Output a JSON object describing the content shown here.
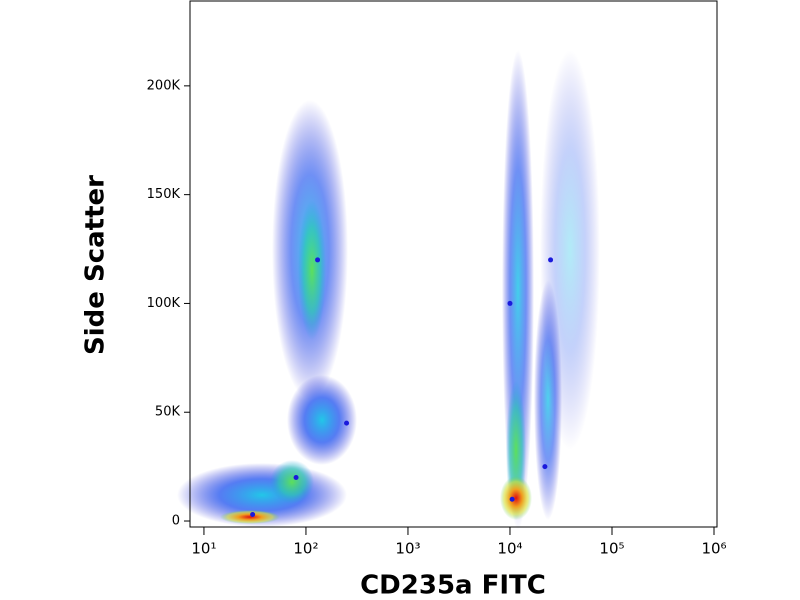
{
  "chart_data": {
    "type": "scatter",
    "x_label": "CD235a FITC",
    "y_label": "Side Scatter",
    "x": [
      130,
      80,
      30,
      250,
      10500,
      10000,
      22000,
      25000
    ],
    "y": [
      120000,
      20000,
      3000,
      45000,
      10000,
      100000,
      25000,
      120000
    ],
    "color": "#1a1adc",
    "xscale": "log",
    "xlim": [
      7.3,
      1070000
    ],
    "ylim": [
      -2750,
      239000
    ],
    "xticks": [
      {
        "value": 10,
        "label": "10¹"
      },
      {
        "value": 100,
        "label": "10²"
      },
      {
        "value": 1000,
        "label": "10³"
      },
      {
        "value": 10000,
        "label": "10⁴"
      },
      {
        "value": 100000,
        "label": "10⁵"
      },
      {
        "value": 1000000,
        "label": "10⁶"
      }
    ],
    "yticks": [
      0,
      {
        "value": 50000,
        "label": "50K"
      },
      {
        "value": 100000,
        "label": "100K"
      },
      {
        "value": 150000,
        "label": "150K"
      },
      {
        "value": 200000,
        "label": "200K"
      }
    ]
  }
}
